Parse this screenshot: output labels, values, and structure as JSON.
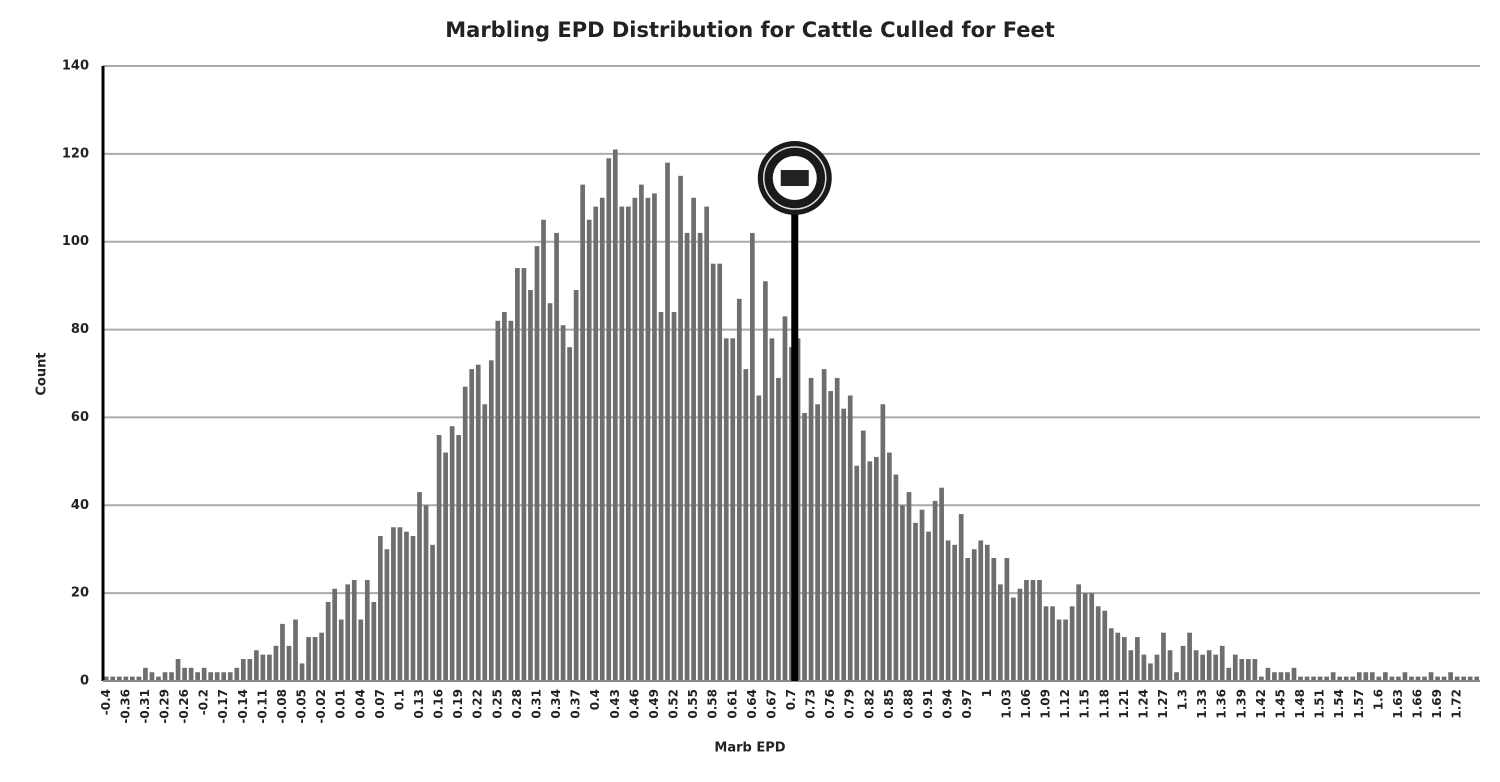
{
  "chart_data": {
    "type": "bar",
    "title": "Marbling EPD Distribution for Cattle Culled for Feet",
    "x_label": "Marb EPD",
    "y_label": "Count",
    "color": "#6e6e6e",
    "grid": true,
    "ylim": [
      0,
      140
    ],
    "yticks": [
      0,
      20,
      40,
      60,
      80,
      100,
      120,
      140
    ],
    "categories": [
      "-0.4",
      null,
      null,
      "-0.36",
      null,
      null,
      "-0.31",
      null,
      null,
      "-0.29",
      null,
      null,
      "-0.26",
      null,
      null,
      "-0.2",
      null,
      null,
      "-0.17",
      null,
      null,
      "-0.14",
      null,
      null,
      "-0.11",
      null,
      null,
      "-0.08",
      null,
      null,
      "-0.05",
      null,
      null,
      "-0.02",
      null,
      null,
      "0.01",
      null,
      null,
      "0.04",
      null,
      null,
      "0.07",
      null,
      null,
      "0.1",
      null,
      null,
      "0.13",
      null,
      null,
      "0.16",
      null,
      null,
      "0.19",
      null,
      null,
      "0.22",
      null,
      null,
      "0.25",
      null,
      null,
      "0.28",
      null,
      null,
      "0.31",
      null,
      null,
      "0.34",
      null,
      null,
      "0.37",
      null,
      null,
      "0.4",
      null,
      null,
      "0.43",
      null,
      null,
      "0.46",
      null,
      null,
      "0.49",
      null,
      null,
      "0.52",
      null,
      null,
      "0.55",
      null,
      null,
      "0.58",
      null,
      null,
      "0.61",
      null,
      null,
      "0.64",
      null,
      null,
      "0.67",
      null,
      null,
      "0.7",
      null,
      null,
      "0.73",
      null,
      null,
      "0.76",
      null,
      null,
      "0.79",
      null,
      null,
      "0.82",
      null,
      null,
      "0.85",
      null,
      null,
      "0.88",
      null,
      null,
      "0.91",
      null,
      null,
      "0.94",
      null,
      null,
      "0.97",
      null,
      null,
      "1",
      null,
      null,
      "1.03",
      null,
      null,
      "1.06",
      null,
      null,
      "1.09",
      null,
      null,
      "1.12",
      null,
      null,
      "1.15",
      null,
      null,
      "1.18",
      null,
      null,
      "1.21",
      null,
      null,
      "1.24",
      null,
      null,
      "1.27",
      null,
      null,
      "1.3",
      null,
      null,
      "1.33",
      null,
      null,
      "1.36",
      null,
      null,
      "1.39",
      null,
      null,
      "1.42",
      null,
      null,
      "1.45",
      null,
      null,
      "1.48",
      null,
      null,
      "1.51",
      null,
      null,
      "1.54",
      null,
      null,
      "1.57",
      null,
      null,
      "1.6",
      null,
      null,
      "1.63",
      null,
      null,
      "1.66",
      null,
      null,
      "1.69",
      null,
      null,
      "1.72",
      null,
      null,
      null
    ],
    "values": [
      1,
      1,
      1,
      1,
      1,
      1,
      3,
      2,
      1,
      2,
      2,
      5,
      3,
      3,
      2,
      3,
      2,
      2,
      2,
      2,
      3,
      5,
      5,
      7,
      6,
      6,
      8,
      13,
      8,
      14,
      4,
      10,
      10,
      11,
      18,
      21,
      14,
      22,
      23,
      14,
      23,
      18,
      33,
      30,
      35,
      35,
      34,
      33,
      43,
      40,
      31,
      56,
      52,
      58,
      56,
      67,
      71,
      72,
      63,
      73,
      82,
      84,
      82,
      94,
      94,
      89,
      99,
      105,
      86,
      102,
      81,
      76,
      89,
      113,
      105,
      108,
      110,
      119,
      121,
      108,
      108,
      110,
      113,
      110,
      111,
      84,
      118,
      84,
      115,
      102,
      110,
      102,
      108,
      95,
      95,
      78,
      78,
      87,
      71,
      102,
      65,
      91,
      78,
      69,
      83,
      76,
      78,
      61,
      69,
      63,
      71,
      66,
      69,
      62,
      65,
      49,
      57,
      50,
      51,
      63,
      52,
      47,
      40,
      43,
      36,
      39,
      34,
      41,
      44,
      32,
      31,
      38,
      28,
      30,
      32,
      31,
      28,
      22,
      28,
      19,
      21,
      23,
      23,
      23,
      17,
      17,
      14,
      14,
      17,
      22,
      20,
      20,
      17,
      16,
      12,
      11,
      10,
      7,
      10,
      6,
      4,
      6,
      11,
      7,
      2,
      8,
      11,
      7,
      6,
      7,
      6,
      8,
      3,
      6,
      5,
      5,
      5,
      1,
      3,
      2,
      2,
      2,
      3,
      1,
      1,
      1,
      1,
      1,
      2,
      1,
      1,
      1,
      2,
      2,
      2,
      1,
      2,
      1,
      1,
      2,
      1,
      1,
      1,
      2,
      1,
      1,
      2,
      1,
      1,
      1,
      1
    ],
    "reference_x_index": 105.5
  }
}
